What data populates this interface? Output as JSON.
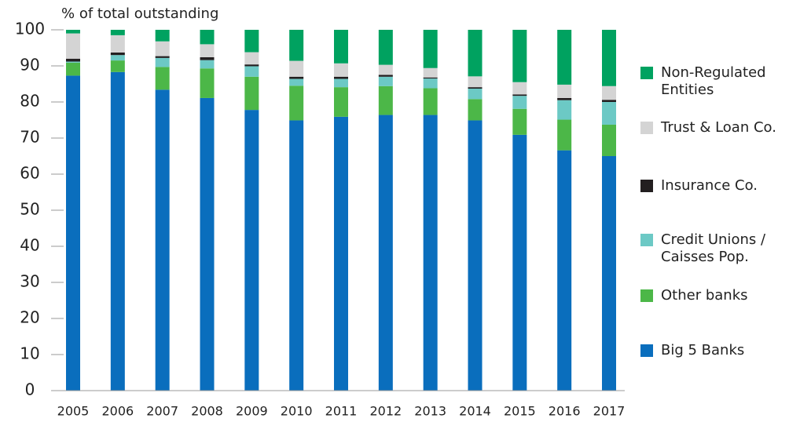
{
  "chart_data": {
    "type": "bar",
    "stacked": true,
    "y_label": "% of total outstanding",
    "categories": [
      "2005",
      "2006",
      "2007",
      "2008",
      "2009",
      "2010",
      "2011",
      "2012",
      "2013",
      "2014",
      "2015",
      "2016",
      "2017"
    ],
    "series": [
      {
        "name": "Big 5 Banks",
        "color": "#0a6ebd",
        "values": [
          87.3,
          88.3,
          83.4,
          81.1,
          77.8,
          74.9,
          75.9,
          76.4,
          76.4,
          74.9,
          70.9,
          66.6,
          65.0
        ]
      },
      {
        "name": "Other banks",
        "color": "#4cb748",
        "values": [
          3.6,
          3.2,
          6.3,
          8.2,
          9.2,
          9.6,
          8.2,
          8.0,
          7.4,
          5.9,
          7.2,
          8.5,
          8.7
        ]
      },
      {
        "name": "Credit Unions / Caisses Pop.",
        "color": "#6cc9c5",
        "values": [
          0.3,
          1.5,
          2.5,
          2.3,
          2.9,
          1.9,
          2.3,
          2.6,
          2.7,
          2.9,
          3.6,
          5.4,
          6.3
        ]
      },
      {
        "name": "Insurance Co.",
        "color": "#231f20",
        "values": [
          0.8,
          0.7,
          0.5,
          0.8,
          0.5,
          0.6,
          0.6,
          0.5,
          0.3,
          0.4,
          0.4,
          0.6,
          0.6
        ]
      },
      {
        "name": "Trust & Loan Co.",
        "color": "#d4d4d4",
        "values": [
          7.0,
          4.8,
          4.1,
          3.6,
          3.4,
          4.4,
          3.7,
          2.8,
          2.6,
          3.0,
          3.4,
          3.7,
          3.8
        ]
      },
      {
        "name": "Non-Regulated Entities",
        "color": "#00a260",
        "values": [
          1.0,
          1.5,
          3.2,
          4.0,
          6.2,
          8.6,
          9.3,
          9.7,
          10.6,
          12.9,
          14.5,
          15.2,
          15.6
        ]
      }
    ],
    "ylim": [
      0,
      100
    ],
    "yticks": [
      0,
      10,
      20,
      30,
      40,
      50,
      60,
      70,
      80,
      90,
      100
    ],
    "legend": "right"
  }
}
